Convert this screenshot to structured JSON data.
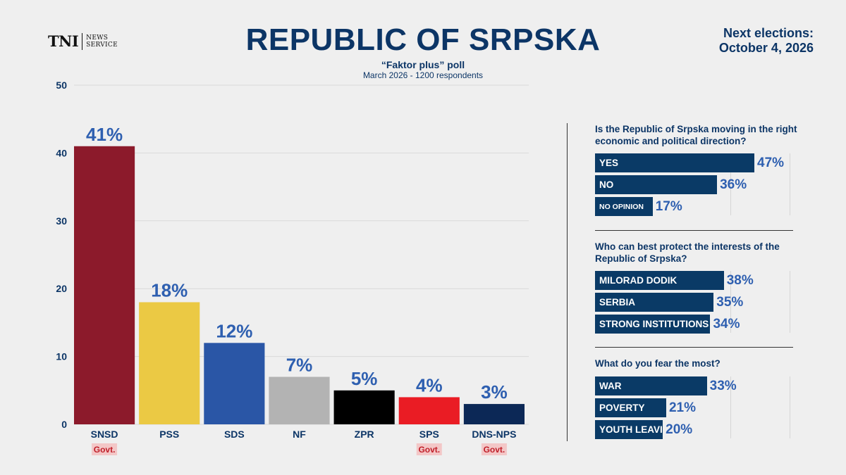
{
  "logo": {
    "mark": "TNI",
    "line1": "NEWS",
    "line2": "SERVICE"
  },
  "header": {
    "title": "REPUBLIC OF SRPSKA",
    "subtitle": "“Faktor plus” poll",
    "subline": "March 2026 - 1200 respondents",
    "next_line1": "Next elections:",
    "next_line2": "October 4, 2026"
  },
  "colors": {
    "navy": "#0a3a66",
    "label_blue": "#2e5fb0",
    "govt_bg": "#f3c7c7",
    "govt_text": "#c0202a"
  },
  "chart_data": [
    {
      "type": "bar",
      "title": "",
      "categories": [
        "SNSD",
        "PSS",
        "SDS",
        "NF",
        "ZPR",
        "SPS",
        "DNS-NPS"
      ],
      "values": [
        41,
        18,
        12,
        7,
        5,
        4,
        3
      ],
      "data_labels": [
        "41%",
        "18%",
        "12%",
        "7%",
        "5%",
        "4%",
        "3%"
      ],
      "bar_colors": [
        "#8c1a2b",
        "#ebc944",
        "#2a56a6",
        "#b3b3b3",
        "#000000",
        "#ea1c24",
        "#0c2856"
      ],
      "govt_tags": [
        "Govt.",
        "",
        "",
        "",
        "",
        "Govt.",
        "Govt."
      ],
      "yticks": [
        "0",
        "10",
        "20",
        "30",
        "40",
        "50"
      ],
      "ylim": [
        0,
        50
      ],
      "xlabel": "",
      "ylabel": "",
      "grid": true
    },
    {
      "type": "bar",
      "orientation": "horizontal",
      "title": "Is the Republic of Srpska moving in the right economic and political direction?",
      "categories": [
        "YES",
        "NO",
        "NO OPINION"
      ],
      "values": [
        47,
        36,
        17
      ],
      "data_labels": [
        "47%",
        "36%",
        "17%"
      ]
    },
    {
      "type": "bar",
      "orientation": "horizontal",
      "title": "Who can best protect the interests of the Republic of Srpska?",
      "categories": [
        "MILORAD DODIK",
        "SERBIA",
        "STRONG INSTITUTIONS"
      ],
      "values": [
        38,
        35,
        34
      ],
      "data_labels": [
        "38%",
        "35%",
        "34%"
      ]
    },
    {
      "type": "bar",
      "orientation": "horizontal",
      "title": "What do you fear the most?",
      "categories": [
        "WAR",
        "POVERTY",
        "YOUTH LEAVING"
      ],
      "values": [
        33,
        21,
        20
      ],
      "data_labels": [
        "33%",
        "21%",
        "20%"
      ]
    }
  ]
}
